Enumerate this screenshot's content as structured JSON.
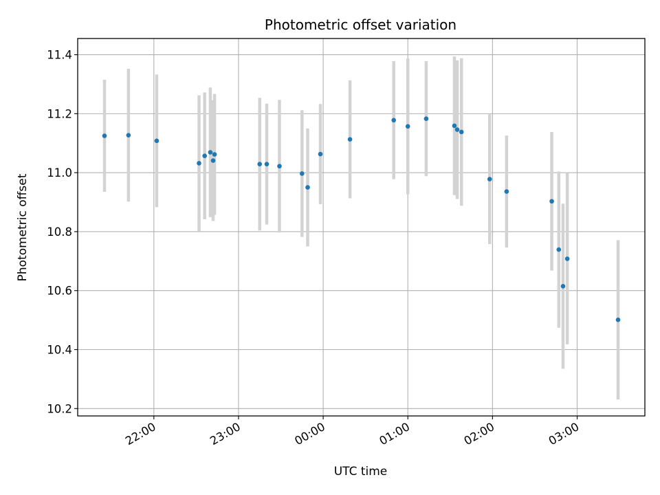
{
  "chart_data": {
    "type": "scatter",
    "title": "Photometric offset variation",
    "xlabel": "UTC time",
    "ylabel": "Photometric offset",
    "x_ticks": [
      "22:00",
      "23:00",
      "00:00",
      "01:00",
      "02:00",
      "03:00"
    ],
    "y_ticks": [
      "10.2",
      "10.4",
      "10.6",
      "10.8",
      "11.0",
      "11.2",
      "11.4"
    ],
    "xlim": [
      "21:06",
      "03:48"
    ],
    "ylim": [
      10.175,
      11.455
    ],
    "grid": true,
    "errorbar_color": "#d3d3d3",
    "point_color": "#1f77b4",
    "points": [
      {
        "x": "21:25",
        "y": 11.125,
        "err": 0.19
      },
      {
        "x": "21:42",
        "y": 11.127,
        "err": 0.225
      },
      {
        "x": "22:02",
        "y": 11.108,
        "err": 0.225
      },
      {
        "x": "22:32",
        "y": 11.032,
        "err": 0.23
      },
      {
        "x": "22:36",
        "y": 11.057,
        "err": 0.215
      },
      {
        "x": "22:40",
        "y": 11.069,
        "err": 0.22
      },
      {
        "x": "22:42",
        "y": 11.041,
        "err": 0.205
      },
      {
        "x": "22:43",
        "y": 11.062,
        "err": 0.205
      },
      {
        "x": "23:15",
        "y": 11.029,
        "err": 0.225
      },
      {
        "x": "23:20",
        "y": 11.029,
        "err": 0.205
      },
      {
        "x": "23:29",
        "y": 11.022,
        "err": 0.225
      },
      {
        "x": "23:45",
        "y": 10.997,
        "err": 0.215
      },
      {
        "x": "23:49",
        "y": 10.95,
        "err": 0.2
      },
      {
        "x": "23:58",
        "y": 11.063,
        "err": 0.17
      },
      {
        "x": "00:19",
        "y": 11.113,
        "err": 0.2
      },
      {
        "x": "00:50",
        "y": 11.178,
        "err": 0.2
      },
      {
        "x": "01:00",
        "y": 11.157,
        "err": 0.23
      },
      {
        "x": "01:13",
        "y": 11.183,
        "err": 0.195
      },
      {
        "x": "01:33",
        "y": 11.159,
        "err": 0.235
      },
      {
        "x": "01:35",
        "y": 11.146,
        "err": 0.235
      },
      {
        "x": "01:38",
        "y": 11.138,
        "err": 0.25
      },
      {
        "x": "01:58",
        "y": 10.978,
        "err": 0.22
      },
      {
        "x": "02:10",
        "y": 10.936,
        "err": 0.19
      },
      {
        "x": "02:42",
        "y": 10.903,
        "err": 0.235
      },
      {
        "x": "02:47",
        "y": 10.739,
        "err": 0.265
      },
      {
        "x": "02:50",
        "y": 10.615,
        "err": 0.28
      },
      {
        "x": "02:53",
        "y": 10.708,
        "err": 0.29
      },
      {
        "x": "03:29",
        "y": 10.501,
        "err": 0.27
      }
    ]
  }
}
